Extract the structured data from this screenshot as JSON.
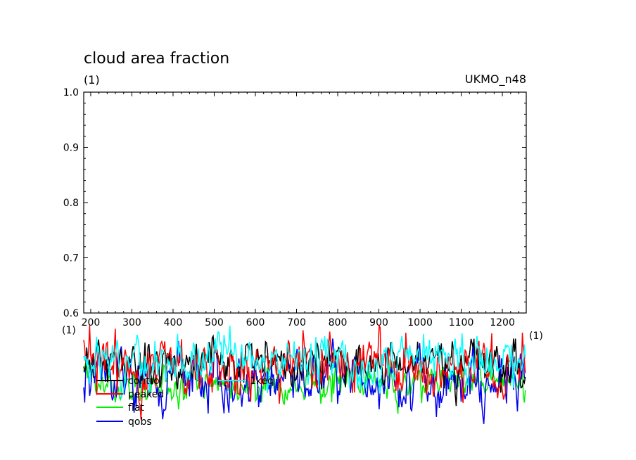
{
  "chart_data": {
    "type": "line",
    "title": "cloud area fraction",
    "units_label": "(1)",
    "model_label": "UKMO_n48",
    "xaxis_unit_label": "(1)",
    "xaxis_unit_label_right": "(1)",
    "ylim": [
      0.6,
      1.0
    ],
    "xlim": [
      183,
      1258
    ],
    "y_ticks": [
      "0.6",
      "0.7",
      "0.8",
      "0.9",
      "1.0"
    ],
    "y_tick_values": [
      0.6,
      0.7,
      0.8,
      0.9,
      1.0
    ],
    "x_ticks": [
      "200",
      "300",
      "400",
      "500",
      "600",
      "700",
      "800",
      "900",
      "1000",
      "1100",
      "1200"
    ],
    "x_tick_values": [
      200,
      300,
      400,
      500,
      600,
      700,
      800,
      900,
      1000,
      1100,
      1200
    ],
    "grid": false,
    "legend_placement": "bottom-left",
    "series": [
      {
        "name": "control",
        "color": "#000000",
        "base": 0.51,
        "amp": 0.018,
        "seed": 11
      },
      {
        "name": "peaked",
        "color": "#ff0000",
        "base": 0.505,
        "amp": 0.024,
        "seed": 23
      },
      {
        "name": "flat",
        "color": "#00ee00",
        "base": 0.47,
        "amp": 0.014,
        "seed": 37
      },
      {
        "name": "qobs",
        "color": "#0000ee",
        "base": 0.48,
        "amp": 0.022,
        "seed": 51
      },
      {
        "name": "1keq",
        "color": "#00ffff",
        "base": 0.515,
        "amp": 0.018,
        "seed": 67
      }
    ]
  }
}
